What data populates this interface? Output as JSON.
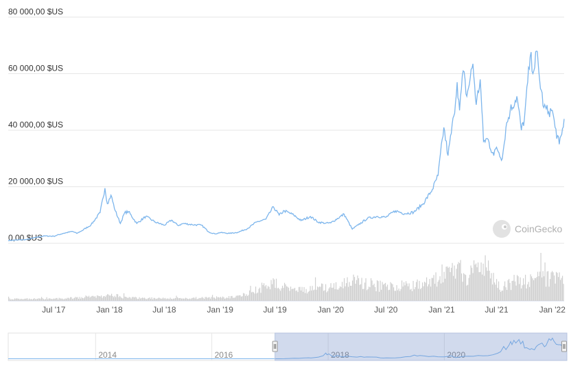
{
  "chart_data": {
    "type": "line",
    "y_ticks": [
      "0,00 $US",
      "20 000,00 $US",
      "40 000,00 $US",
      "60 000,00 $US",
      "80 000,00 $US"
    ],
    "y_values": [
      0,
      20000,
      40000,
      60000,
      80000
    ],
    "ylim": [
      0,
      80000
    ],
    "x_ticks": [
      "Jul '17",
      "Jan '18",
      "Jul '18",
      "Jan '19",
      "Jul '19",
      "Jan '20",
      "Jul '20",
      "Jan '21",
      "Jul '21",
      "Jan '22"
    ],
    "x_tick_dates": [
      "2017-07-01",
      "2018-01-01",
      "2018-07-01",
      "2019-01-01",
      "2019-07-01",
      "2020-01-01",
      "2020-07-01",
      "2021-01-01",
      "2021-07-01",
      "2022-01-01"
    ],
    "grid": true,
    "series": [
      {
        "values": [
          [
            "2017-02-01",
            1000
          ],
          [
            "2017-03-01",
            1150
          ],
          [
            "2017-04-01",
            1300
          ],
          [
            "2017-05-01",
            2000
          ],
          [
            "2017-06-01",
            2600
          ],
          [
            "2017-07-01",
            2500
          ],
          [
            "2017-08-01",
            3500
          ],
          [
            "2017-09-01",
            4200
          ],
          [
            "2017-09-15",
            3500
          ],
          [
            "2017-10-01",
            4400
          ],
          [
            "2017-11-01",
            6500
          ],
          [
            "2017-12-01",
            10800
          ],
          [
            "2017-12-17",
            19500
          ],
          [
            "2017-12-25",
            14000
          ],
          [
            "2018-01-06",
            17000
          ],
          [
            "2018-01-20",
            11500
          ],
          [
            "2018-02-06",
            7000
          ],
          [
            "2018-02-20",
            10800
          ],
          [
            "2018-03-05",
            11200
          ],
          [
            "2018-04-01",
            7000
          ],
          [
            "2018-05-01",
            9500
          ],
          [
            "2018-06-01",
            7500
          ],
          [
            "2018-07-01",
            6400
          ],
          [
            "2018-07-25",
            8200
          ],
          [
            "2018-08-15",
            6300
          ],
          [
            "2018-09-01",
            7000
          ],
          [
            "2018-10-01",
            6600
          ],
          [
            "2018-11-01",
            6400
          ],
          [
            "2018-11-25",
            4000
          ],
          [
            "2018-12-15",
            3300
          ],
          [
            "2019-01-01",
            3800
          ],
          [
            "2019-02-01",
            3500
          ],
          [
            "2019-03-01",
            3900
          ],
          [
            "2019-04-01",
            5200
          ],
          [
            "2019-05-01",
            7500
          ],
          [
            "2019-06-01",
            8500
          ],
          [
            "2019-06-26",
            12900
          ],
          [
            "2019-07-15",
            10000
          ],
          [
            "2019-08-01",
            11500
          ],
          [
            "2019-09-01",
            10000
          ],
          [
            "2019-09-25",
            8000
          ],
          [
            "2019-10-26",
            9500
          ],
          [
            "2019-11-20",
            7500
          ],
          [
            "2019-12-15",
            7100
          ],
          [
            "2020-01-01",
            7200
          ],
          [
            "2020-02-14",
            10300
          ],
          [
            "2020-03-12",
            5000
          ],
          [
            "2020-04-01",
            6500
          ],
          [
            "2020-05-01",
            8800
          ],
          [
            "2020-06-01",
            9500
          ],
          [
            "2020-07-01",
            9200
          ],
          [
            "2020-08-01",
            11500
          ],
          [
            "2020-09-01",
            10500
          ],
          [
            "2020-10-01",
            11000
          ],
          [
            "2020-11-01",
            14000
          ],
          [
            "2020-12-01",
            19000
          ],
          [
            "2020-12-20",
            24000
          ],
          [
            "2021-01-08",
            41000
          ],
          [
            "2021-01-22",
            31000
          ],
          [
            "2021-02-10",
            45000
          ],
          [
            "2021-02-21",
            57000
          ],
          [
            "2021-03-01",
            47000
          ],
          [
            "2021-03-13",
            61000
          ],
          [
            "2021-03-25",
            52000
          ],
          [
            "2021-04-14",
            63500
          ],
          [
            "2021-04-25",
            49000
          ],
          [
            "2021-05-08",
            58000
          ],
          [
            "2021-05-19",
            36000
          ],
          [
            "2021-06-01",
            37000
          ],
          [
            "2021-06-22",
            31000
          ],
          [
            "2021-07-01",
            34000
          ],
          [
            "2021-07-20",
            30000
          ],
          [
            "2021-08-01",
            41000
          ],
          [
            "2021-08-15",
            47000
          ],
          [
            "2021-09-06",
            52000
          ],
          [
            "2021-09-21",
            40000
          ],
          [
            "2021-10-01",
            44000
          ],
          [
            "2021-10-20",
            66000
          ],
          [
            "2021-11-01",
            61000
          ],
          [
            "2021-11-10",
            68000
          ],
          [
            "2021-11-20",
            58000
          ],
          [
            "2021-12-04",
            48000
          ],
          [
            "2021-12-20",
            46500
          ],
          [
            "2022-01-01",
            47000
          ],
          [
            "2022-01-10",
            41000
          ],
          [
            "2022-01-24",
            35000
          ],
          [
            "2022-02-01",
            38500
          ],
          [
            "2022-02-09",
            44000
          ]
        ]
      }
    ],
    "volume": [
      [
        "2017-02-01",
        0.05
      ],
      [
        "2017-07-01",
        0.05
      ],
      [
        "2017-12-15",
        0.12
      ],
      [
        "2018-01-10",
        0.15
      ],
      [
        "2018-03-01",
        0.08
      ],
      [
        "2018-07-01",
        0.06
      ],
      [
        "2018-12-01",
        0.08
      ],
      [
        "2019-03-01",
        0.1
      ],
      [
        "2019-05-01",
        0.3
      ],
      [
        "2019-07-01",
        0.45
      ],
      [
        "2019-10-01",
        0.3
      ],
      [
        "2020-01-01",
        0.35
      ],
      [
        "2020-03-12",
        0.55
      ],
      [
        "2020-05-01",
        0.45
      ],
      [
        "2020-07-01",
        0.35
      ],
      [
        "2020-09-01",
        0.4
      ],
      [
        "2020-12-01",
        0.45
      ],
      [
        "2021-01-08",
        0.8
      ],
      [
        "2021-02-22",
        0.95
      ],
      [
        "2021-03-15",
        0.6
      ],
      [
        "2021-05-19",
        1.0
      ],
      [
        "2021-06-15",
        0.55
      ],
      [
        "2021-07-20",
        0.35
      ],
      [
        "2021-09-07",
        0.55
      ],
      [
        "2021-10-20",
        0.5
      ],
      [
        "2021-12-04",
        0.6
      ],
      [
        "2022-01-22",
        0.55
      ],
      [
        "2022-02-09",
        0.45
      ]
    ],
    "navigator": {
      "ticks": [
        "2014",
        "2016",
        "2018",
        "2020"
      ],
      "tick_dates": [
        "2014-01-01",
        "2016-01-01",
        "2018-01-01",
        "2020-01-01"
      ],
      "range_start": "2017-02-01",
      "range_end": "2022-02-09"
    },
    "watermark": "CoinGecko"
  },
  "colors": {
    "line": "#7cb5ec",
    "volume": "#cfcfcf",
    "grid": "#e6e6e6",
    "navigator_mask": "rgba(102,133,194,0.3)"
  }
}
